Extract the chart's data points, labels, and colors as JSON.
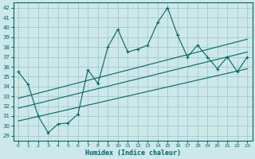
{
  "xlabel": "Humidex (Indice chaleur)",
  "bg_color": "#cce8e8",
  "grid_color": "#aacccc",
  "line_color": "#006666",
  "xlim": [
    -0.5,
    23.5
  ],
  "ylim": [
    28.5,
    42.5
  ],
  "yticks": [
    29,
    30,
    31,
    32,
    33,
    34,
    35,
    36,
    37,
    38,
    39,
    40,
    41,
    42
  ],
  "xticks": [
    0,
    1,
    2,
    3,
    4,
    5,
    6,
    7,
    8,
    9,
    10,
    11,
    12,
    13,
    14,
    15,
    16,
    17,
    18,
    19,
    20,
    21,
    22,
    23
  ],
  "series1_x": [
    0,
    1,
    2,
    3,
    4,
    5,
    6,
    7,
    8,
    9,
    10,
    11,
    12,
    13,
    14,
    15,
    16,
    17,
    18,
    19,
    20,
    21,
    22,
    23
  ],
  "series1_y": [
    35.5,
    34.2,
    31.0,
    29.3,
    30.2,
    30.3,
    31.2,
    35.7,
    34.3,
    38.0,
    39.8,
    37.5,
    37.8,
    38.2,
    40.5,
    42.0,
    39.2,
    37.0,
    38.2,
    37.0,
    35.8,
    37.0,
    35.5,
    37.0
  ],
  "trend1_x": [
    0,
    23
  ],
  "trend1_y": [
    31.8,
    37.5
  ],
  "trend2_x": [
    0,
    23
  ],
  "trend2_y": [
    30.5,
    35.8
  ],
  "trend3_x": [
    0,
    23
  ],
  "trend3_y": [
    32.8,
    38.8
  ]
}
